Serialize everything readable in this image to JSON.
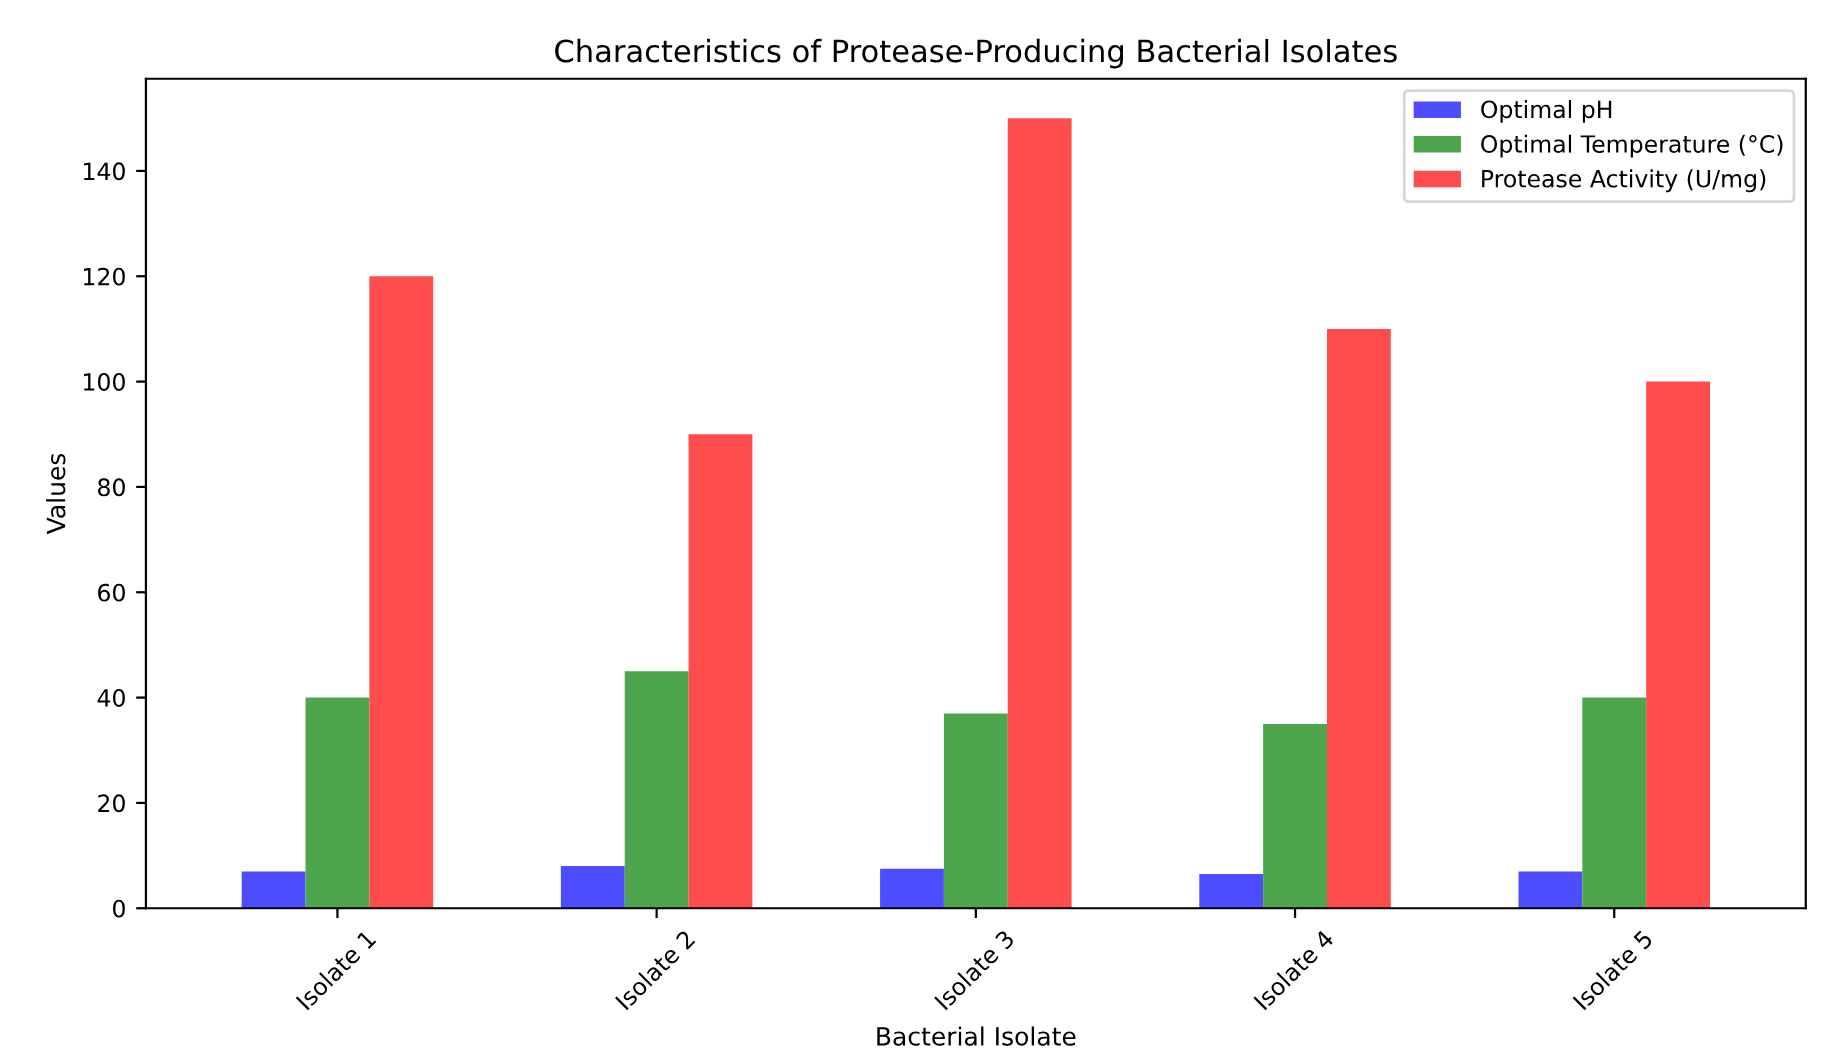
{
  "chart_data": {
    "type": "bar",
    "title": "Characteristics of Protease-Producing Bacterial Isolates",
    "xlabel": "Bacterial Isolate",
    "ylabel": "Values",
    "categories": [
      "Isolate 1",
      "Isolate 2",
      "Isolate 3",
      "Isolate 4",
      "Isolate 5"
    ],
    "series": [
      {
        "name": "Optimal pH",
        "color": "#4d4dff",
        "values": [
          7,
          8,
          7.5,
          6.5,
          7
        ]
      },
      {
        "name": "Optimal Temperature (°C)",
        "color": "#4da64d",
        "values": [
          40,
          45,
          37,
          35,
          40
        ]
      },
      {
        "name": "Protease Activity (U/mg)",
        "color": "#ff4d4d",
        "values": [
          120,
          90,
          150,
          110,
          100
        ]
      }
    ],
    "ylim": [
      0,
      157.5
    ],
    "yticks": [
      0,
      20,
      40,
      60,
      80,
      100,
      120,
      140
    ],
    "grid": false,
    "legend": "top right"
  }
}
